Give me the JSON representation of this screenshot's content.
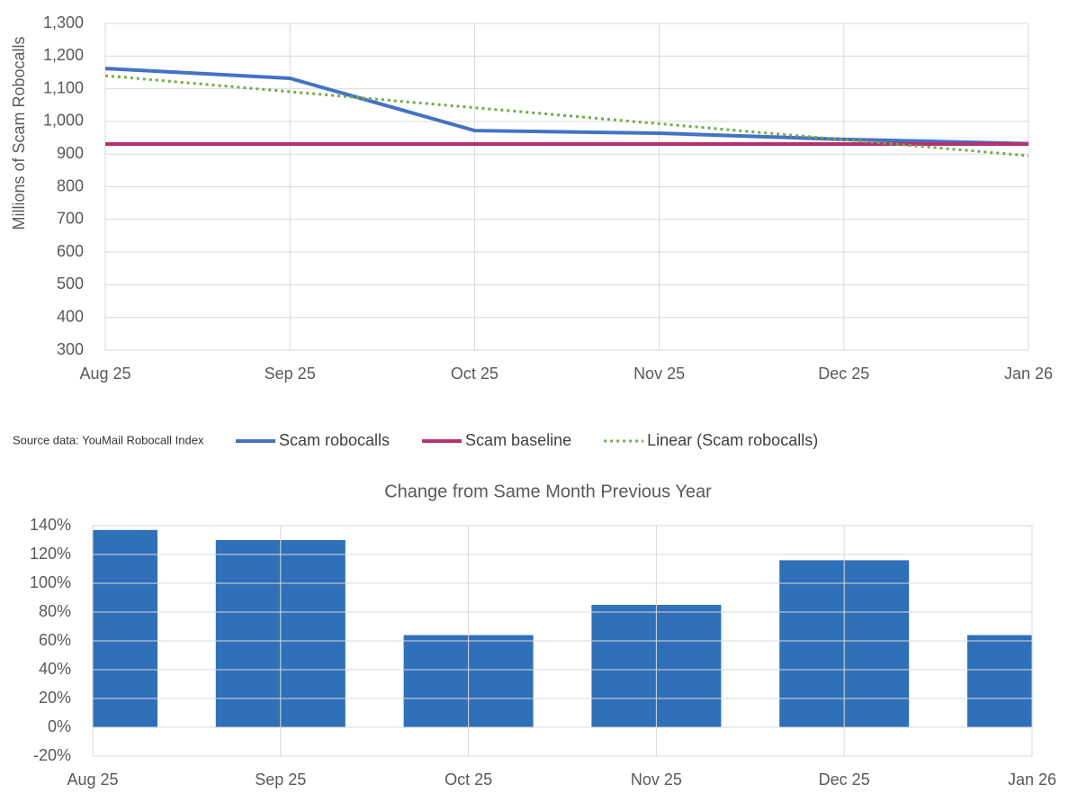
{
  "chart_data": [
    {
      "type": "line",
      "y_label": "Millions of Scam Robocalls",
      "note": "Source data: YouMail Robocall Index",
      "categories": [
        "Aug 25",
        "Sep 25",
        "Oct 25",
        "Nov 25",
        "Dec 25",
        "Jan 26"
      ],
      "series": [
        {
          "name": "Scam robocalls",
          "color": "#4472c4",
          "style": "solid",
          "values": [
            1162,
            1132,
            972,
            964,
            945,
            932
          ]
        },
        {
          "name": "Scam baseline",
          "color": "#b8306f",
          "style": "solid",
          "values": [
            931,
            931,
            931,
            931,
            931,
            931
          ]
        },
        {
          "name": "Linear (Scam robocalls)",
          "color": "#70ad47",
          "style": "dotted",
          "values": [
            1140,
            1091,
            1042,
            993,
            944,
            895
          ]
        }
      ],
      "ylim": [
        300,
        1300
      ],
      "yticks": [
        300,
        400,
        500,
        600,
        700,
        800,
        900,
        {
          "value": 1000,
          "label": "1,000"
        },
        {
          "value": 1100,
          "label": "1,100"
        },
        {
          "value": 1200,
          "label": "1,200"
        },
        {
          "value": 1300,
          "label": "1,300"
        }
      ],
      "grid": true
    },
    {
      "type": "bar",
      "title": "Change from Same Month Previous Year",
      "categories": [
        "Aug 25",
        "Sep 25",
        "Oct 25",
        "Nov 25",
        "Dec 25",
        "Jan 26"
      ],
      "values": [
        137,
        130,
        64,
        85,
        116,
        64
      ],
      "color": "#2f70b9",
      "ylim": [
        -20,
        140
      ],
      "yticks": [
        {
          "value": -20,
          "label": "-20%"
        },
        {
          "value": 0,
          "label": "0%"
        },
        {
          "value": 20,
          "label": "20%"
        },
        {
          "value": 40,
          "label": "40%"
        },
        {
          "value": 60,
          "label": "60%"
        },
        {
          "value": 80,
          "label": "80%"
        },
        {
          "value": 100,
          "label": "100%"
        },
        {
          "value": 120,
          "label": "120%"
        },
        {
          "value": 140,
          "label": "140%"
        }
      ],
      "grid": true
    }
  ]
}
